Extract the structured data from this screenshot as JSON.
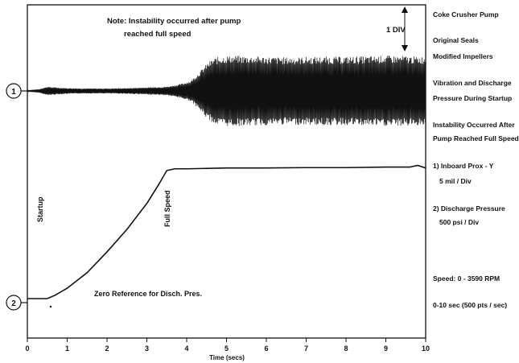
{
  "chart_data": {
    "type": "line",
    "xlabel": "Time (secs)",
    "xlim": [
      0,
      10
    ],
    "x_ticks": [
      "0",
      "1",
      "2",
      "3",
      "4",
      "5",
      "6",
      "7",
      "8",
      "9",
      "10"
    ],
    "grid": false,
    "series": [
      {
        "channel": "1",
        "kind": "vibration",
        "envelope_points": [
          [
            0.0,
            0.02
          ],
          [
            0.3,
            0.05
          ],
          [
            0.5,
            0.12
          ],
          [
            0.7,
            0.1
          ],
          [
            1.0,
            0.08
          ],
          [
            1.5,
            0.07
          ],
          [
            2.0,
            0.07
          ],
          [
            2.5,
            0.08
          ],
          [
            3.0,
            0.1
          ],
          [
            3.5,
            0.12
          ],
          [
            3.8,
            0.18
          ],
          [
            4.1,
            0.28
          ],
          [
            4.3,
            0.5
          ],
          [
            4.5,
            0.75
          ],
          [
            4.7,
            0.92
          ],
          [
            5.0,
            0.98
          ],
          [
            5.5,
            0.97
          ],
          [
            6.0,
            0.95
          ],
          [
            6.5,
            0.93
          ],
          [
            7.0,
            0.94
          ],
          [
            7.5,
            0.95
          ],
          [
            8.0,
            0.95
          ],
          [
            8.5,
            0.96
          ],
          [
            9.0,
            0.98
          ],
          [
            9.5,
            0.97
          ],
          [
            9.8,
            0.95
          ],
          [
            10.0,
            0.96
          ]
        ]
      },
      {
        "channel": "2",
        "kind": "discharge-pressure",
        "points": [
          [
            0.0,
            0.0
          ],
          [
            0.5,
            0.0
          ],
          [
            0.7,
            0.02
          ],
          [
            1.0,
            0.06
          ],
          [
            1.5,
            0.15
          ],
          [
            2.0,
            0.27
          ],
          [
            2.5,
            0.4
          ],
          [
            3.0,
            0.55
          ],
          [
            3.3,
            0.66
          ],
          [
            3.5,
            0.74
          ],
          [
            3.7,
            0.75
          ],
          [
            4.0,
            0.75
          ],
          [
            5.0,
            0.755
          ],
          [
            6.0,
            0.755
          ],
          [
            7.0,
            0.757
          ],
          [
            8.0,
            0.757
          ],
          [
            9.0,
            0.76
          ],
          [
            9.6,
            0.76
          ],
          [
            9.8,
            0.77
          ],
          [
            10.0,
            0.755
          ]
        ]
      }
    ],
    "annotations": {
      "note_line1": "Note:  Instability occurred after pump",
      "note_line2": "reached full speed",
      "scale_label": "1 DIV",
      "startup": "Startup",
      "full_speed": "Full Speed",
      "zero_reference": "Zero Reference for Disch. Pres.",
      "channel_1": "1",
      "channel_2": "2"
    },
    "side_text": [
      "Coke Crusher Pump",
      "Original Seals",
      "Modified Impellers",
      "Vibration and Discharge",
      "Pressure During Startup",
      "Instability Occurred After",
      "Pump Reached Full Speed",
      "1) Inboard Prox - Y",
      "5 mil / Div",
      "2) Discharge Pressure",
      "500 psi / Div",
      "Speed: 0 - 3590 RPM",
      "0-10 sec (500 pts / sec)"
    ]
  }
}
